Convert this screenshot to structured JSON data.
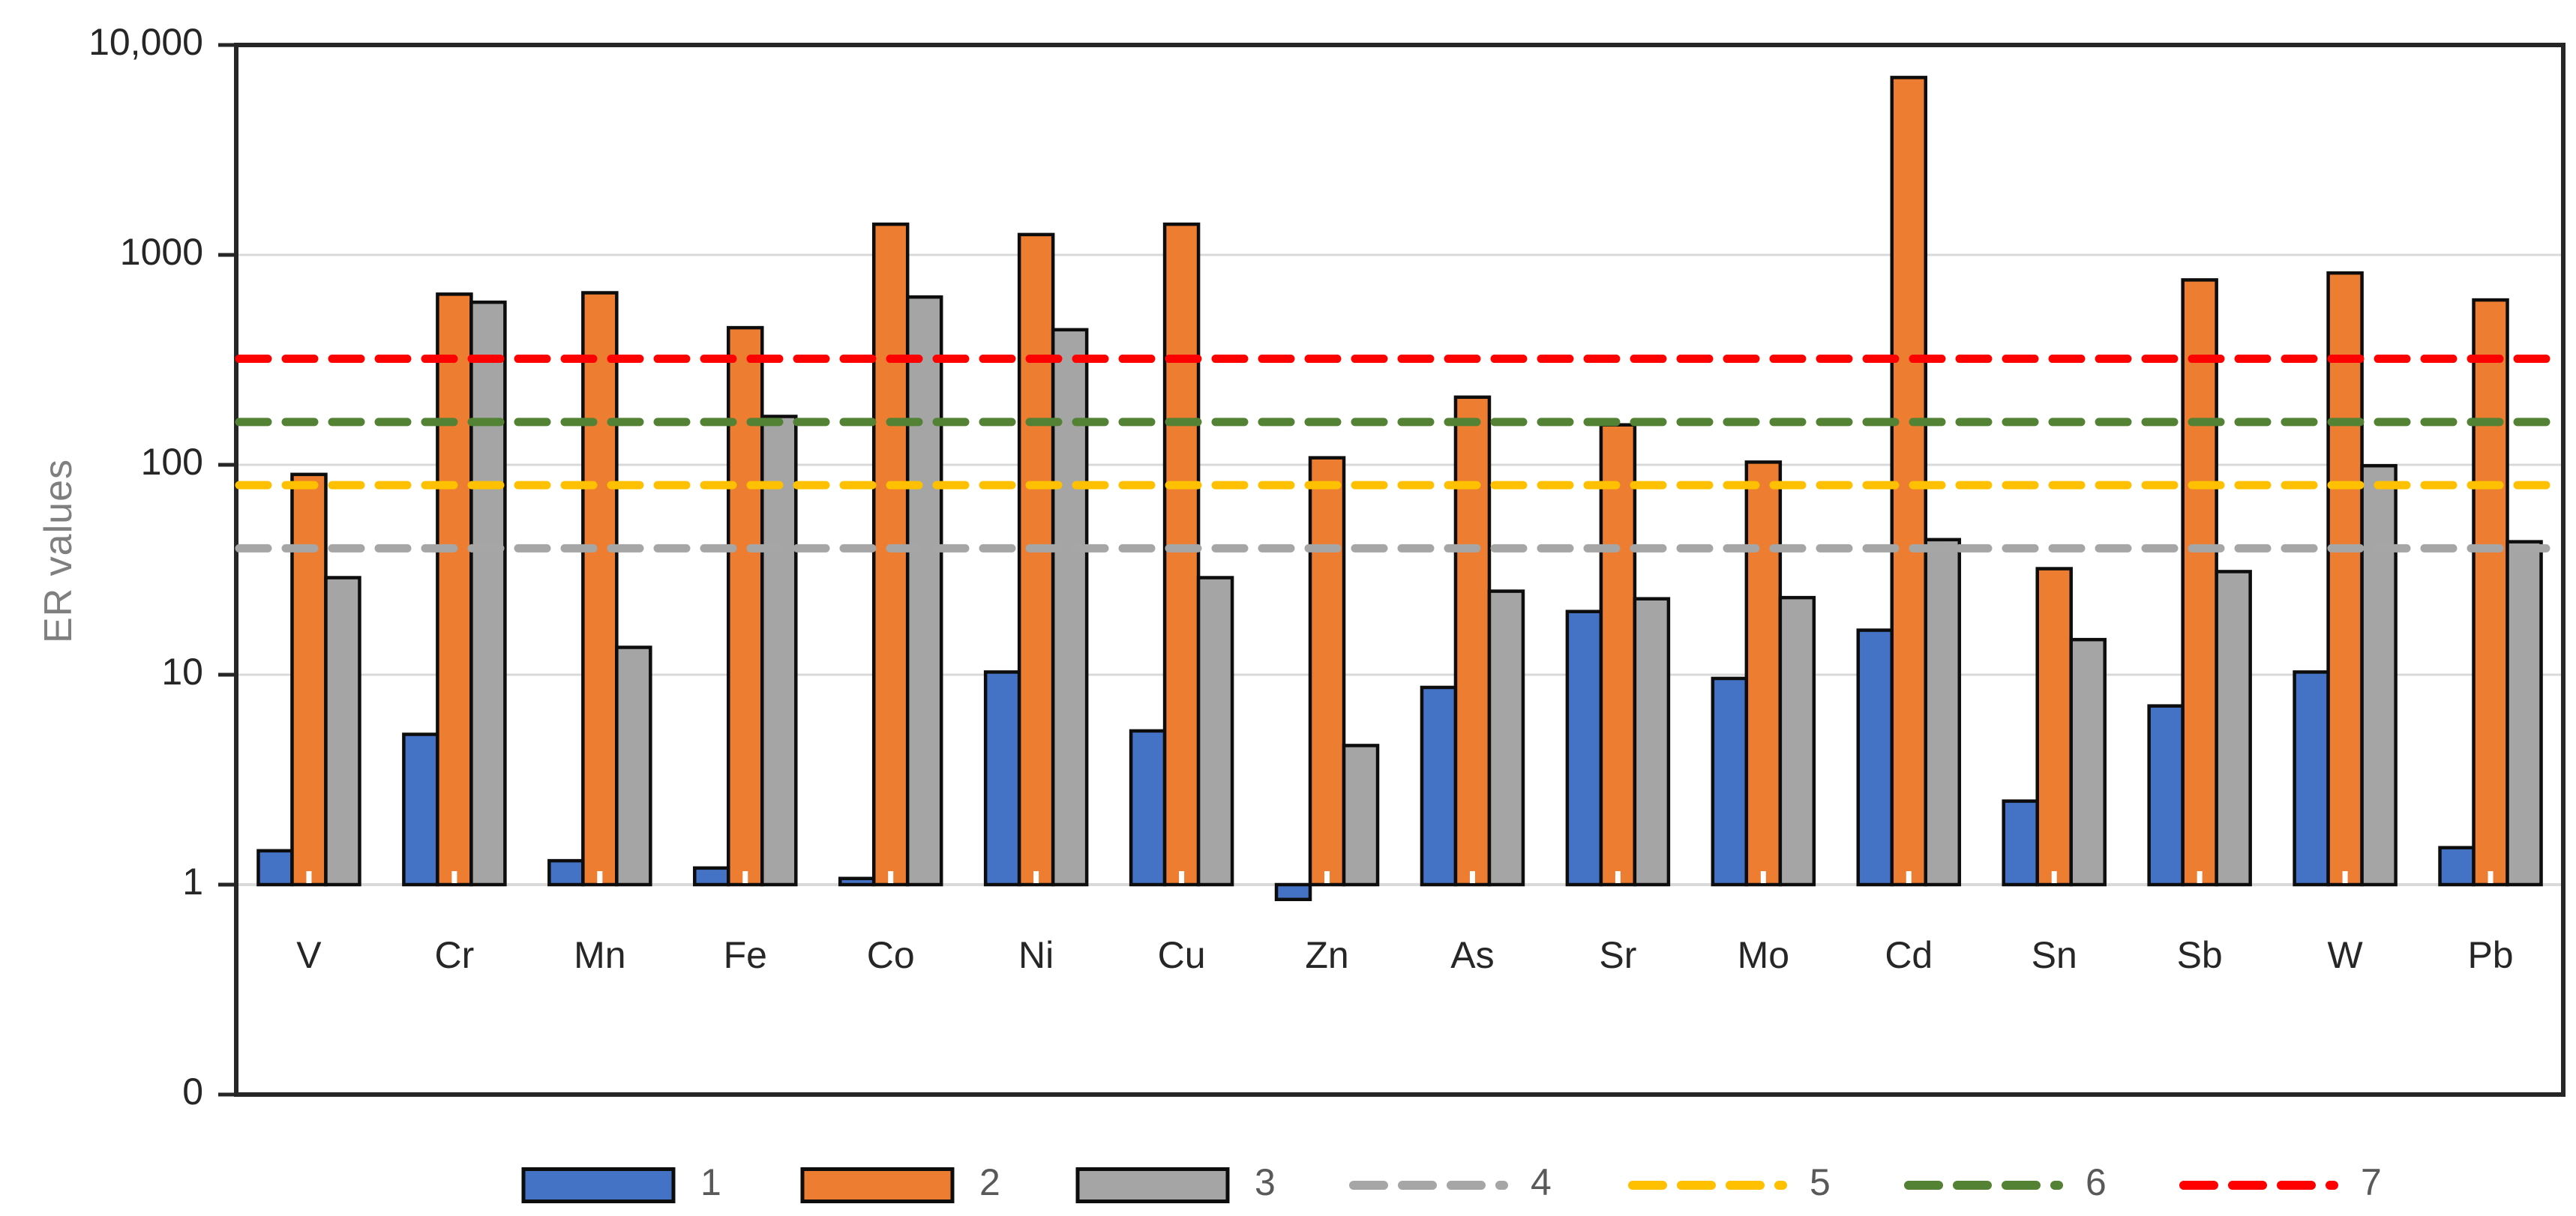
{
  "chart_data": {
    "type": "bar",
    "title": "",
    "ylabel": "ER values",
    "xlabel": "",
    "y_axis": {
      "scale": "log",
      "ticks": [
        {
          "label": "10,000",
          "value": 10000
        },
        {
          "label": "1000",
          "value": 1000
        },
        {
          "label": "100",
          "value": 100
        },
        {
          "label": "10",
          "value": 10
        },
        {
          "label": "1",
          "value": 1
        },
        {
          "label": "0",
          "value": 0
        }
      ],
      "ylim_log": [
        1,
        10000
      ]
    },
    "categories": [
      "V",
      "Cr",
      "Mn",
      "Fe",
      "Co",
      "Ni",
      "Cu",
      "Zn",
      "As",
      "Sr",
      "Mo",
      "Cd",
      "Sn",
      "Sb",
      "W",
      "Pb"
    ],
    "series": [
      {
        "name": "1",
        "color": "#4472C4",
        "values": [
          1.45,
          5.2,
          1.3,
          1.2,
          1.07,
          10.3,
          5.4,
          0.85,
          8.7,
          20,
          9.6,
          16.3,
          2.5,
          7.1,
          10.3,
          1.5
        ]
      },
      {
        "name": "2",
        "color": "#ED7D31",
        "values": [
          90,
          650,
          660,
          450,
          1400,
          1250,
          1400,
          108,
          210,
          155,
          103,
          7000,
          32,
          760,
          820,
          610
        ]
      },
      {
        "name": "3",
        "color": "#A5A5A5",
        "values": [
          29,
          595,
          13.5,
          170,
          630,
          440,
          29,
          4.6,
          25,
          23,
          23.3,
          44,
          14.7,
          31,
          99,
          43
        ]
      }
    ],
    "reference_lines": [
      {
        "name": "4",
        "value": 40,
        "color": "#A6A6A6"
      },
      {
        "name": "5",
        "value": 80,
        "color": "#FFC000"
      },
      {
        "name": "6",
        "value": 160,
        "color": "#548235"
      },
      {
        "name": "7",
        "value": 320,
        "color": "#FF0000"
      }
    ],
    "legend_position": "bottom",
    "grid": true
  },
  "colors": {
    "background": "#FFFFFF",
    "gridline": "#D9D9D9",
    "baseline": "#D9D9D9",
    "frame": "#262626",
    "bar_border": "#0d0d0d",
    "axis_text": "#262626",
    "legend_text": "#595959",
    "y_title_text": "#7f7f7f"
  }
}
